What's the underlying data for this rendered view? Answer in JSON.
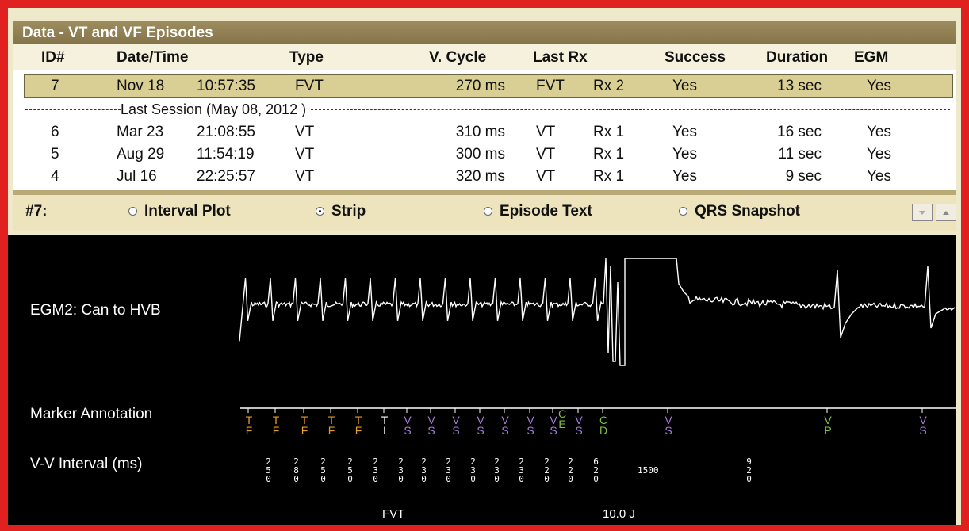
{
  "window": {
    "title": "Data - VT and VF Episodes"
  },
  "table": {
    "headers": [
      "ID#",
      "Date/Time",
      "Type",
      "V. Cycle",
      "Last Rx",
      "Success",
      "Duration",
      "EGM"
    ],
    "current_rows": [
      [
        "7",
        "Nov 18",
        "10:57:35",
        "FVT",
        "270 ms",
        "FVT",
        "Rx 2",
        "Yes",
        "13 sec",
        "Yes"
      ]
    ],
    "separator": "Last Session (May 08, 2012 )",
    "previous_rows": [
      [
        "6",
        "Mar 23",
        "21:08:55",
        "VT",
        "310 ms",
        "VT",
        "Rx 1",
        "Yes",
        "16 sec",
        "Yes"
      ],
      [
        "5",
        "Aug 29",
        "11:54:19",
        "VT",
        "300 ms",
        "VT",
        "Rx 1",
        "Yes",
        "11 sec",
        "Yes"
      ],
      [
        "4",
        "Jul 16",
        "22:25:57",
        "VT",
        "320 ms",
        "VT",
        "Rx 1",
        "Yes",
        "9 sec",
        "Yes"
      ]
    ]
  },
  "toolbar": {
    "label": "#7:",
    "options": [
      {
        "label": "Interval Plot",
        "selected": false
      },
      {
        "label": "Strip",
        "selected": true
      },
      {
        "label": "Episode Text",
        "selected": false
      },
      {
        "label": "QRS Snapshot",
        "selected": false
      }
    ]
  },
  "strip": {
    "channel_label": "EGM2: Can to HVB",
    "marker_label": "Marker Annotation",
    "interval_label": "V-V Interval (ms)",
    "markers": [
      {
        "text": "TF",
        "color": "#e89a2c"
      },
      {
        "text": "TF",
        "color": "#e89a2c"
      },
      {
        "text": "TF",
        "color": "#e89a2c"
      },
      {
        "text": "TF",
        "color": "#e89a2c"
      },
      {
        "text": "TF",
        "color": "#e89a2c"
      },
      {
        "text": "TI",
        "color": "#ffffff"
      },
      {
        "text": "VS",
        "color": "#a67ad8"
      },
      {
        "text": "VS",
        "color": "#a67ad8"
      },
      {
        "text": "VS",
        "color": "#a67ad8"
      },
      {
        "text": "VS",
        "color": "#a67ad8"
      },
      {
        "text": "VS",
        "color": "#a67ad8"
      },
      {
        "text": "VS",
        "color": "#a67ad8"
      },
      {
        "text": "VS",
        "color": "#a67ad8"
      },
      {
        "text": "CE",
        "color": "#7cc444"
      },
      {
        "text": "VS",
        "color": "#a67ad8"
      },
      {
        "text": "CD",
        "color": "#7cc444"
      },
      {
        "text": "VS",
        "color": "#a67ad8"
      },
      {
        "text": "VP",
        "color": "#7cc444"
      },
      {
        "text": "VS",
        "color": "#a67ad8"
      }
    ],
    "intervals": [
      "250",
      "280",
      "250",
      "250",
      "230",
      "230",
      "230",
      "230",
      "230",
      "230",
      "230",
      "220",
      "220",
      "620",
      "1500",
      "920"
    ],
    "annotations": [
      "FVT",
      "10.0 J"
    ]
  }
}
